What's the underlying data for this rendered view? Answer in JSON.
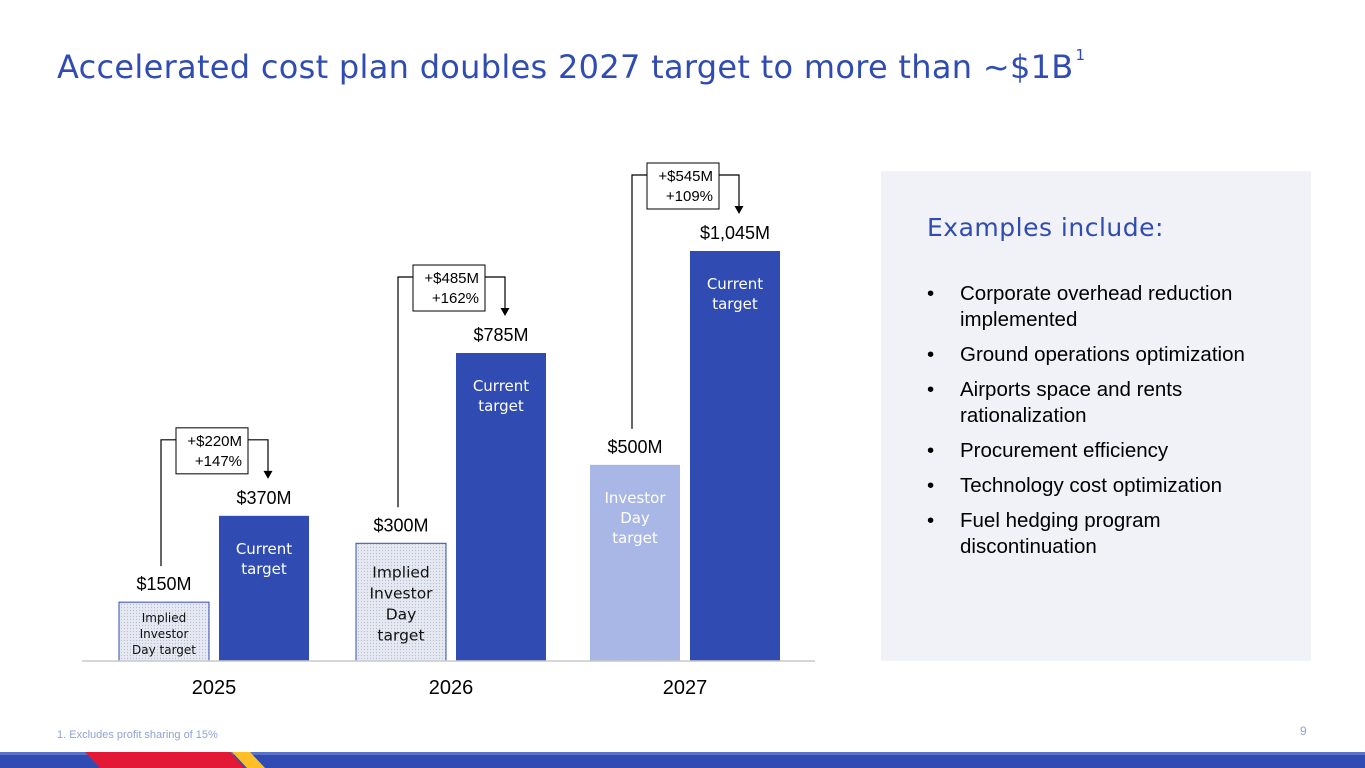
{
  "slide": {
    "title": "Accelerated cost plan doubles 2027 target to more than ~$1B",
    "title_footnote_mark": "1",
    "footnote": "1. Excludes profit sharing of 15%",
    "page_number": "9"
  },
  "colors": {
    "title": "#304CB2",
    "current_target": "#304CB2",
    "investor_day": "#A8B7E6",
    "implied_fill": "#E6E9F2",
    "implied_border": "#304CB2",
    "panel_bg": "#F1F2F7",
    "brand_red": "#E31837",
    "brand_yellow": "#FFBF27"
  },
  "chart_data": {
    "type": "bar",
    "categories": [
      "2025",
      "2026",
      "2027"
    ],
    "series": [
      {
        "values": [
          150,
          300,
          500
        ],
        "bar_labels": [
          "$150M",
          "$300M",
          "$500M"
        ],
        "inside_labels": [
          "Implied Investor Day target",
          "Implied Investor Day target",
          "Investor Day target"
        ],
        "styles": [
          "implied",
          "implied",
          "investor"
        ]
      },
      {
        "values": [
          370,
          785,
          1045
        ],
        "bar_labels": [
          "$370M",
          "$785M",
          "$1,045M"
        ],
        "inside_labels": [
          "Current target",
          "Current target",
          "Current target"
        ],
        "styles": [
          "current",
          "current",
          "current"
        ]
      }
    ],
    "annotations": [
      {
        "category": "2025",
        "lines": [
          "+$220M",
          "+147%"
        ]
      },
      {
        "category": "2026",
        "lines": [
          "+$485M",
          "+162%"
        ]
      },
      {
        "category": "2027",
        "lines": [
          "+$545M",
          "+109%"
        ]
      }
    ],
    "units": "$M",
    "ylim": [
      0,
      1045
    ],
    "grid": false,
    "legend": "none"
  },
  "examples": {
    "heading": "Examples include:",
    "bullet": "•",
    "items": [
      "Corporate overhead reduction implemented",
      "Ground operations optimization",
      "Airports space and rents rationalization",
      "Procurement efficiency",
      "Technology cost optimization",
      "Fuel hedging program discontinuation"
    ]
  }
}
